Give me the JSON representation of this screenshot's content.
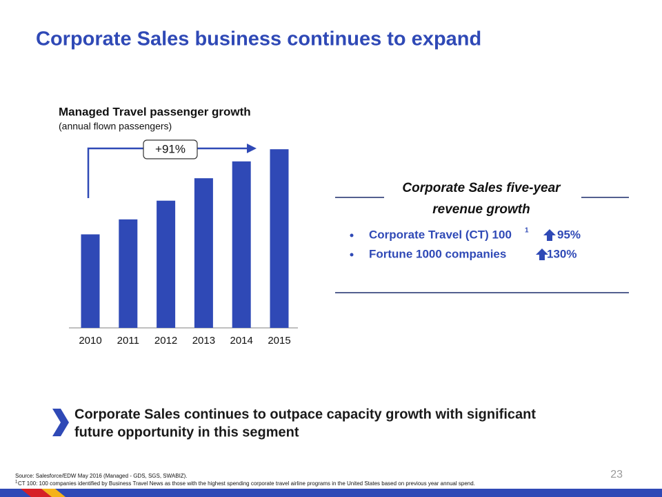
{
  "slide": {
    "title": "Corporate Sales business continues to expand",
    "page_number": "23"
  },
  "chart_data": {
    "type": "bar",
    "title": "Managed Travel passenger growth",
    "subtitle": "(annual flown passengers)",
    "categories": [
      "2010",
      "2011",
      "2012",
      "2013",
      "2014",
      "2015"
    ],
    "values": [
      100,
      116,
      136,
      160,
      178,
      191
    ],
    "color": "#2f49b6",
    "annotation": "+91%"
  },
  "revenue_box": {
    "heading_lines": [
      "Corporate Sales five-year",
      "revenue growth"
    ],
    "items": [
      {
        "label": "Corporate Travel (CT) 100",
        "footnote_ref": "1",
        "growth": "95%"
      },
      {
        "label": "Fortune 1000 companies",
        "growth": "130%"
      }
    ]
  },
  "takeaway": {
    "lines": [
      "Corporate Sales continues to outpace capacity growth with significant",
      "future opportunity in this segment"
    ]
  },
  "footer": {
    "source": "Source: Salesforce/EDW May 2016 (Managed - GDS, SGS, SWABIZ).",
    "footnote_marker": "1",
    "footnote": "CT 100: 100 companies identified by Business Travel News as those with the highest spending corporate travel airline programs in the United States based on previous year annual spend."
  }
}
